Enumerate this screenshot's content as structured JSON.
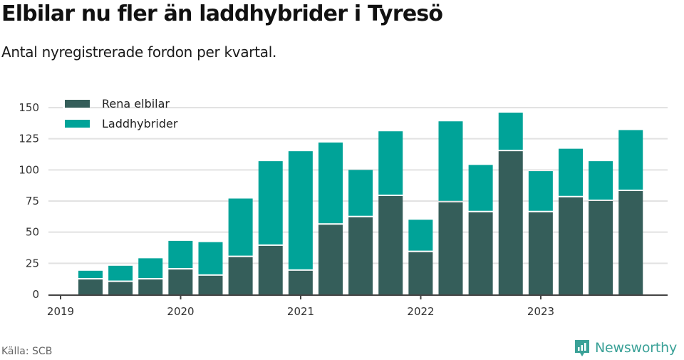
{
  "header": {
    "title": "Elbilar nu fler än laddhybrider i Tyresö",
    "subtitle": "Antal nyregistrerade fordon per kvartal."
  },
  "footer": {
    "source": "Källa: SCB",
    "brand": "Newsworthy",
    "brand_icon": "bar-chart-speech-bubble-icon",
    "brand_color": "#3aa197"
  },
  "colors": {
    "rena_elbilar": "#355e5a",
    "laddhybrider": "#00a398",
    "grid": "#e2e2e2",
    "axis": "#444444"
  },
  "chart_data": {
    "type": "bar",
    "stacked": true,
    "title": "Elbilar nu fler än laddhybrider i Tyresö",
    "subtitle": "Antal nyregistrerade fordon per kvartal.",
    "xlabel": "",
    "ylabel": "",
    "ylim": [
      0,
      150
    ],
    "yticks": [
      0,
      25,
      50,
      75,
      100,
      125,
      150
    ],
    "xticks": [
      "2019",
      "2020",
      "2021",
      "2022",
      "2023"
    ],
    "grid": true,
    "legend_position": "top-left",
    "categories": [
      "2019 Q2",
      "2019 Q3",
      "2019 Q4",
      "2020 Q1",
      "2020 Q2",
      "2020 Q3",
      "2020 Q4",
      "2021 Q1",
      "2021 Q2",
      "2021 Q3",
      "2021 Q4",
      "2022 Q1",
      "2022 Q2",
      "2022 Q3",
      "2022 Q4",
      "2023 Q1",
      "2023 Q2",
      "2023 Q3",
      "2023 Q4"
    ],
    "series": [
      {
        "name": "Rena elbilar",
        "color": "#355e5a",
        "values": [
          12,
          10,
          12,
          20,
          15,
          30,
          39,
          19,
          56,
          62,
          79,
          34,
          74,
          66,
          115,
          66,
          78,
          75,
          83
        ]
      },
      {
        "name": "Laddhybrider",
        "color": "#00a398",
        "values": [
          7,
          13,
          17,
          23,
          27,
          47,
          68,
          96,
          66,
          38,
          52,
          26,
          65,
          38,
          31,
          33,
          39,
          32,
          49
        ]
      }
    ]
  }
}
